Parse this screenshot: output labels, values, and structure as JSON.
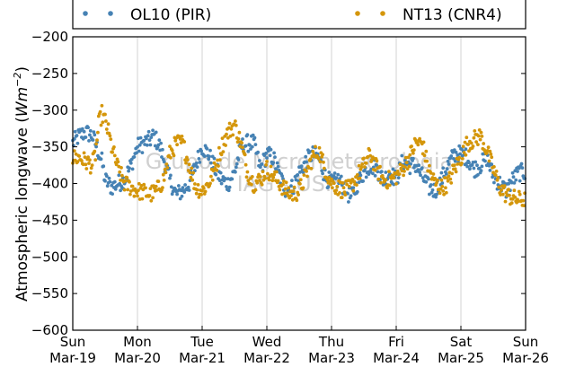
{
  "chart_data": {
    "type": "scatter",
    "title": "",
    "xlabel": "",
    "ylabel": "Atmospheric longwave (Wm⁻²)",
    "ylabel_parts": {
      "text": "Atmospheric longwave (",
      "var": "Wm",
      "sup": "−2",
      "close": ")"
    },
    "ylim": [
      -600,
      -200
    ],
    "yticks": [
      -200,
      -250,
      -300,
      -350,
      -400,
      -450,
      -500,
      -550,
      -600
    ],
    "xlim": [
      0,
      7
    ],
    "xticks": [
      {
        "day": "Sun",
        "date": "Mar-19"
      },
      {
        "day": "Mon",
        "date": "Mar-20"
      },
      {
        "day": "Tue",
        "date": "Mar-21"
      },
      {
        "day": "Wed",
        "date": "Mar-22"
      },
      {
        "day": "Thu",
        "date": "Mar-23"
      },
      {
        "day": "Fri",
        "date": "Mar-24"
      },
      {
        "day": "Sat",
        "date": "Mar-25"
      },
      {
        "day": "Sun",
        "date": "Mar-26"
      }
    ],
    "grid": "vertical",
    "legend_position": "top",
    "watermark": [
      "Grupo de Micrometeorologia",
      "IAG - USP"
    ],
    "series": [
      {
        "name": "OL10 (PIR)",
        "color": "#4682b4",
        "x": [
          0.0,
          0.1,
          0.2,
          0.3,
          0.35,
          0.45,
          0.5,
          0.6,
          0.7,
          0.8,
          0.9,
          1.0,
          1.1,
          1.2,
          1.25,
          1.35,
          1.5,
          1.6,
          1.7,
          1.8,
          1.9,
          2.0,
          2.1,
          2.2,
          2.3,
          2.4,
          2.5,
          2.6,
          2.7,
          2.8,
          2.9,
          3.0,
          3.1,
          3.2,
          3.3,
          3.4,
          3.5,
          3.6,
          3.7,
          3.8,
          3.9,
          4.0,
          4.1,
          4.2,
          4.3,
          4.4,
          4.5,
          4.6,
          4.7,
          4.8,
          4.9,
          5.0,
          5.1,
          5.2,
          5.3,
          5.4,
          5.5,
          5.6,
          5.7,
          5.8,
          5.9,
          6.0,
          6.1,
          6.2,
          6.3,
          6.4,
          6.5,
          6.6,
          6.7,
          6.8,
          6.9,
          7.0
        ],
        "y": [
          -345,
          -335,
          -330,
          -335,
          -345,
          -370,
          -395,
          -405,
          -400,
          -395,
          -375,
          -350,
          -345,
          -340,
          -335,
          -350,
          -395,
          -415,
          -410,
          -400,
          -375,
          -350,
          -360,
          -380,
          -395,
          -400,
          -385,
          -350,
          -345,
          -345,
          -380,
          -360,
          -365,
          -390,
          -410,
          -405,
          -385,
          -370,
          -360,
          -365,
          -390,
          -400,
          -395,
          -405,
          -420,
          -400,
          -385,
          -375,
          -380,
          -395,
          -385,
          -395,
          -370,
          -375,
          -375,
          -390,
          -405,
          -410,
          -395,
          -375,
          -360,
          -360,
          -365,
          -380,
          -375,
          -365,
          -390,
          -400,
          -410,
          -395,
          -385,
          -385
        ]
      },
      {
        "name": "NT13 (CNR4)",
        "color": "#d4960a",
        "x": [
          0.0,
          0.1,
          0.2,
          0.3,
          0.35,
          0.4,
          0.45,
          0.5,
          0.55,
          0.6,
          0.7,
          0.8,
          0.9,
          1.0,
          1.1,
          1.2,
          1.3,
          1.4,
          1.5,
          1.6,
          1.7,
          1.8,
          1.9,
          2.0,
          2.1,
          2.2,
          2.3,
          2.4,
          2.5,
          2.6,
          2.7,
          2.8,
          2.9,
          3.0,
          3.1,
          3.2,
          3.3,
          3.4,
          3.5,
          3.6,
          3.7,
          3.8,
          3.9,
          4.0,
          4.1,
          4.2,
          4.3,
          4.4,
          4.5,
          4.6,
          4.7,
          4.8,
          4.9,
          5.0,
          5.1,
          5.2,
          5.3,
          5.4,
          5.5,
          5.6,
          5.7,
          5.8,
          5.9,
          6.0,
          6.1,
          6.2,
          6.3,
          6.4,
          6.5,
          6.6,
          6.7,
          6.8,
          6.9,
          7.0
        ],
        "y": [
          -365,
          -365,
          -370,
          -375,
          -360,
          -320,
          -305,
          -315,
          -330,
          -350,
          -380,
          -400,
          -405,
          -410,
          -412,
          -415,
          -410,
          -395,
          -360,
          -345,
          -345,
          -375,
          -405,
          -410,
          -400,
          -380,
          -350,
          -330,
          -320,
          -345,
          -385,
          -400,
          -395,
          -380,
          -390,
          -400,
          -410,
          -415,
          -410,
          -390,
          -365,
          -355,
          -380,
          -400,
          -405,
          -410,
          -405,
          -390,
          -375,
          -360,
          -380,
          -395,
          -395,
          -390,
          -380,
          -365,
          -345,
          -345,
          -380,
          -400,
          -405,
          -400,
          -380,
          -365,
          -345,
          -340,
          -335,
          -355,
          -380,
          -405,
          -415,
          -420,
          -422,
          -422
        ]
      }
    ]
  }
}
